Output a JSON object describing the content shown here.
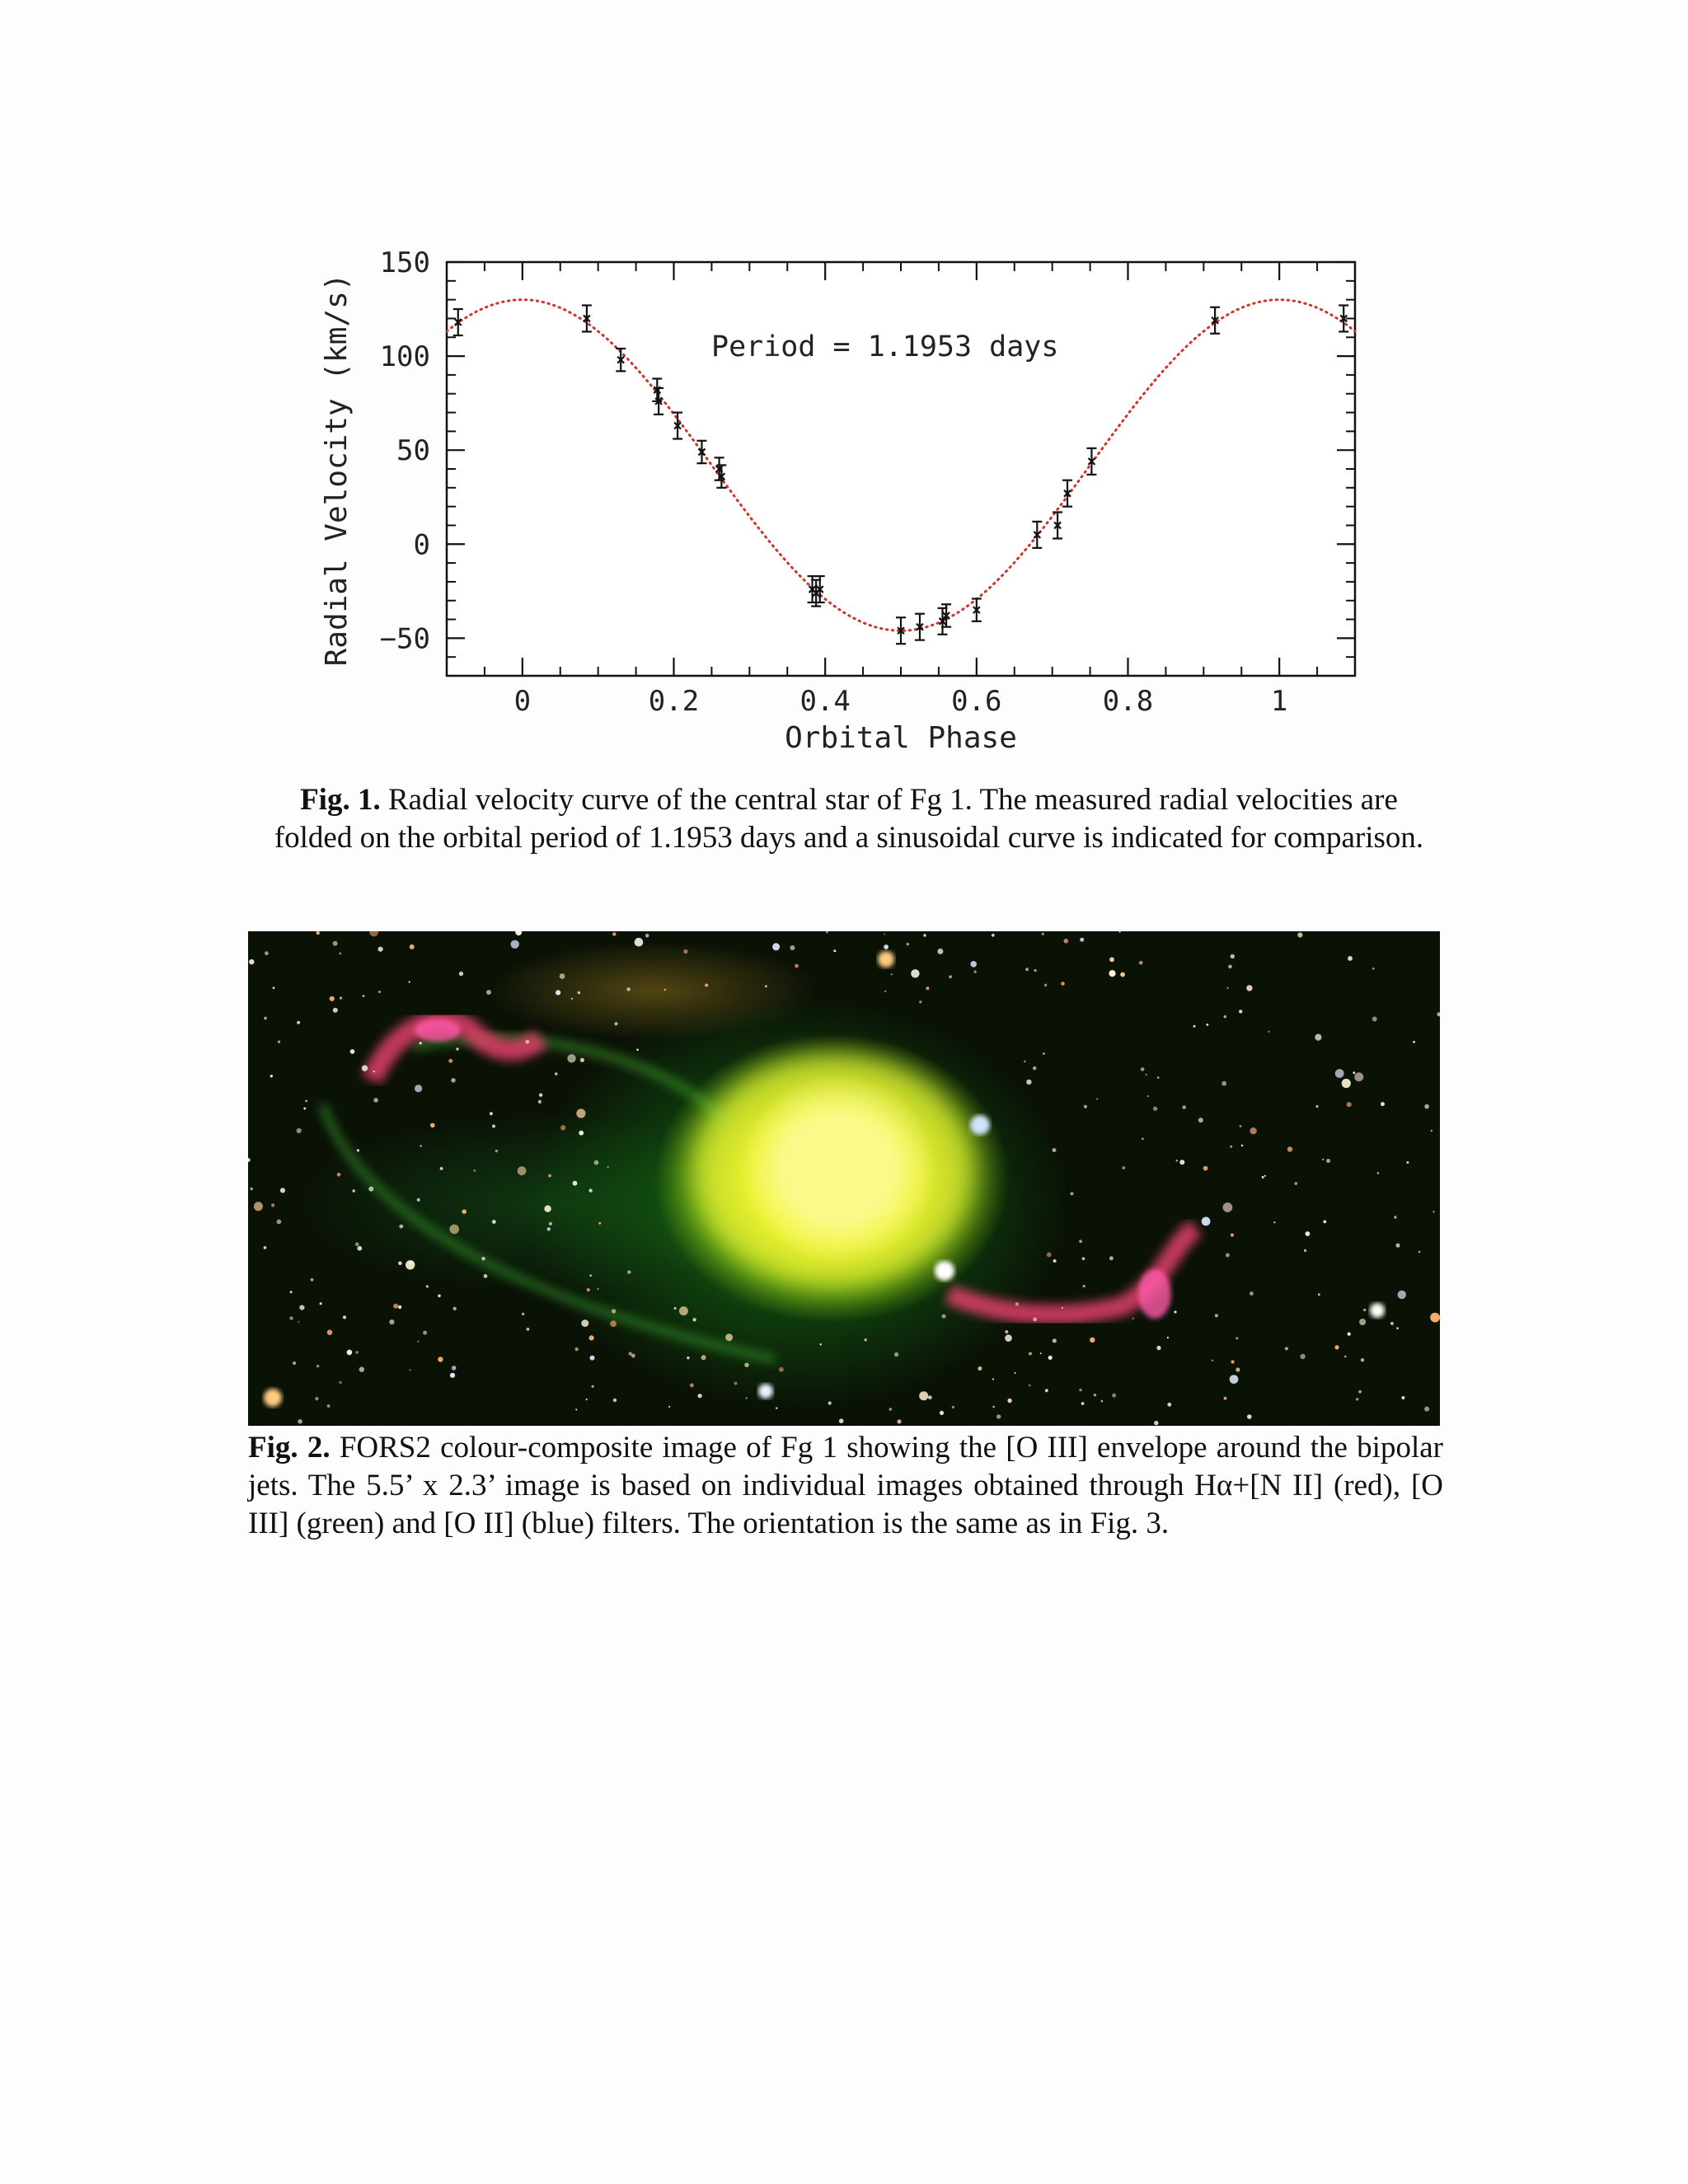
{
  "figure1": {
    "caption_label": "Fig. 1.",
    "caption_text": " Radial velocity curve of the central star of Fg 1. The measured radial velocities are folded on the orbital period of 1.1953 days and a sinusoidal curve is indicated for comparison."
  },
  "figure2": {
    "caption_label": "Fig. 2.",
    "caption_text": " FORS2 colour-composite image of Fg 1 showing the [O III] envelope around the bipolar jets. The 5.5’ x 2.3’ image is based on individual images obtained through Hα+[N II] (red), [O III] (green) and [O II] (blue) filters. The orientation is the same as in Fig. 3."
  },
  "chart_data": {
    "type": "scatter",
    "title": "",
    "annotation": "Period  =  1.1953 days",
    "xlabel": "Orbital Phase",
    "ylabel": "Radial Velocity (km/s)",
    "xlim": [
      -0.1,
      1.1
    ],
    "ylim": [
      -70,
      150
    ],
    "xticks": [
      0,
      0.2,
      0.4,
      0.6,
      0.8,
      1
    ],
    "xtick_labels": [
      "0",
      "0.2",
      "0.4",
      "0.6",
      "0.8",
      "1"
    ],
    "yticks": [
      -50,
      0,
      50,
      100,
      150
    ],
    "ytick_labels": [
      "−50",
      "0",
      "50",
      "100",
      "150"
    ],
    "grid": false,
    "model_curve": {
      "shape": "sinusoid",
      "mean": 42,
      "amplitude": 88,
      "max_at_phase": 0,
      "color": "#d0342c"
    },
    "points": [
      {
        "x": -0.085,
        "y": 118,
        "err": 7
      },
      {
        "x": 0.085,
        "y": 120,
        "err": 7
      },
      {
        "x": 0.13,
        "y": 98,
        "err": 6
      },
      {
        "x": 0.178,
        "y": 82,
        "err": 6
      },
      {
        "x": 0.18,
        "y": 76,
        "err": 7
      },
      {
        "x": 0.205,
        "y": 63,
        "err": 7
      },
      {
        "x": 0.237,
        "y": 49,
        "err": 6
      },
      {
        "x": 0.26,
        "y": 40,
        "err": 6
      },
      {
        "x": 0.263,
        "y": 36,
        "err": 6
      },
      {
        "x": 0.383,
        "y": -24,
        "err": 7
      },
      {
        "x": 0.388,
        "y": -26,
        "err": 7
      },
      {
        "x": 0.393,
        "y": -24,
        "err": 7
      },
      {
        "x": 0.5,
        "y": -46,
        "err": 7
      },
      {
        "x": 0.525,
        "y": -44,
        "err": 7
      },
      {
        "x": 0.555,
        "y": -41,
        "err": 7
      },
      {
        "x": 0.56,
        "y": -38,
        "err": 6
      },
      {
        "x": 0.6,
        "y": -35,
        "err": 6
      },
      {
        "x": 0.68,
        "y": 5,
        "err": 7
      },
      {
        "x": 0.707,
        "y": 10,
        "err": 7
      },
      {
        "x": 0.72,
        "y": 27,
        "err": 7
      },
      {
        "x": 0.752,
        "y": 44,
        "err": 7
      },
      {
        "x": 0.915,
        "y": 119,
        "err": 7
      },
      {
        "x": 1.085,
        "y": 120,
        "err": 7
      }
    ]
  }
}
